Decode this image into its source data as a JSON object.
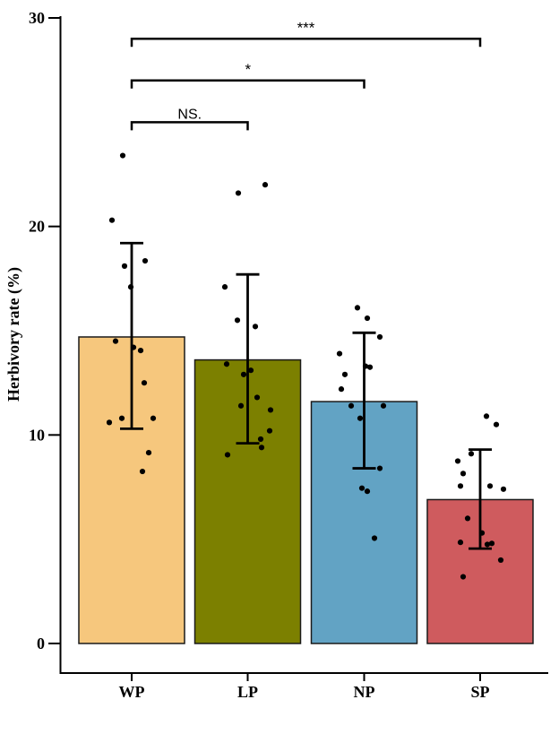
{
  "chart_data": {
    "type": "bar",
    "title": "",
    "ylabel": "Herbivory rate (%)",
    "xlabel": "",
    "ylim": [
      0,
      30
    ],
    "yticks": [
      0,
      10,
      20,
      30
    ],
    "grid": false,
    "legend": "none",
    "categories": [
      "WP",
      "LP",
      "NP",
      "SP"
    ],
    "series": [
      {
        "name": "Herbivory rate (%) mean",
        "values": [
          14.7,
          13.6,
          11.6,
          6.9
        ]
      }
    ],
    "errors": [
      {
        "low": 10.3,
        "high": 19.2
      },
      {
        "low": 9.6,
        "high": 17.7
      },
      {
        "low": 8.4,
        "high": 14.9
      },
      {
        "low": 4.55,
        "high": 9.3
      }
    ],
    "colors": [
      "#F6C77D",
      "#7C8000",
      "#62A3C4",
      "#CF5B5E"
    ],
    "bar_stroke_color": "#1A1A1A",
    "point_color": "#000000",
    "axis_color": "#000000",
    "points": [
      [
        [
          23.4,
          -10
        ],
        [
          20.3,
          -22
        ],
        [
          18.35,
          15
        ],
        [
          18.1,
          -8
        ],
        [
          17.1,
          -1
        ],
        [
          14.5,
          -18
        ],
        [
          14.2,
          2
        ],
        [
          14.05,
          10
        ],
        [
          12.5,
          14
        ],
        [
          10.8,
          24
        ],
        [
          10.8,
          -11
        ],
        [
          10.6,
          -25
        ],
        [
          9.15,
          19
        ],
        [
          8.25,
          12
        ]
      ],
      [
        [
          22.0,
          19.5
        ],
        [
          21.6,
          -10.5
        ],
        [
          17.1,
          -25.5
        ],
        [
          15.5,
          -11.5
        ],
        [
          15.2,
          8.5
        ],
        [
          13.4,
          -23.5
        ],
        [
          13.1,
          3.5
        ],
        [
          12.9,
          -4.5
        ],
        [
          11.8,
          10.5
        ],
        [
          11.4,
          -7.5
        ],
        [
          11.2,
          25.5
        ],
        [
          10.2,
          24.5
        ],
        [
          9.8,
          14.5
        ],
        [
          9.4,
          15.5
        ],
        [
          9.05,
          -22.5
        ]
      ],
      [
        [
          16.1,
          -7.5
        ],
        [
          15.6,
          3.5
        ],
        [
          14.7,
          17.5
        ],
        [
          13.9,
          -27.5
        ],
        [
          13.3,
          1.5
        ],
        [
          13.25,
          6.5
        ],
        [
          12.9,
          -21.5
        ],
        [
          12.2,
          -25.5
        ],
        [
          11.4,
          -14.5
        ],
        [
          11.4,
          21.5
        ],
        [
          10.8,
          -4.5
        ],
        [
          8.4,
          17.5
        ],
        [
          7.45,
          -2.5
        ],
        [
          7.3,
          3.5
        ],
        [
          5.05,
          11.5
        ]
      ],
      [
        [
          10.9,
          7
        ],
        [
          10.5,
          18
        ],
        [
          9.1,
          -10
        ],
        [
          8.75,
          -25
        ],
        [
          8.15,
          -19
        ],
        [
          7.55,
          -22
        ],
        [
          7.55,
          11
        ],
        [
          7.4,
          26
        ],
        [
          6.0,
          -14
        ],
        [
          5.3,
          2
        ],
        [
          4.85,
          -22
        ],
        [
          4.8,
          13
        ],
        [
          4.75,
          8
        ],
        [
          4.0,
          23
        ],
        [
          3.2,
          -19
        ]
      ]
    ],
    "significance": [
      {
        "from": "WP",
        "to": "LP",
        "label": "NS.",
        "height": 25
      },
      {
        "from": "WP",
        "to": "NP",
        "label": "*",
        "height": 27
      },
      {
        "from": "WP",
        "to": "SP",
        "label": "***",
        "height": 29
      }
    ]
  }
}
